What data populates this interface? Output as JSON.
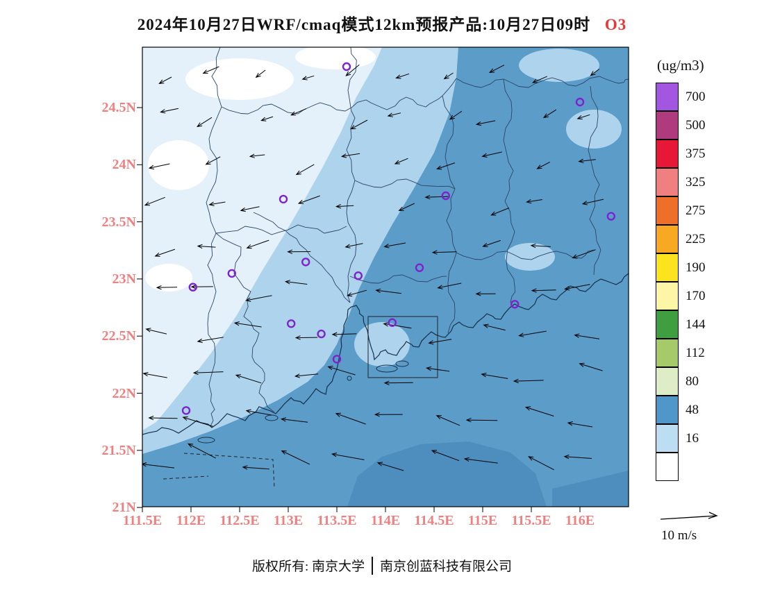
{
  "title": {
    "main": "2024年10月27日WRF/cmaq模式12km预报产品:10月27日09时",
    "species": "O3",
    "species_color": "#E93636"
  },
  "axes": {
    "lat_ticks": [
      "24.5N",
      "24N",
      "23.5N",
      "23N",
      "22.5N",
      "22N",
      "21.5N",
      "21N"
    ],
    "lon_ticks": [
      "111.5E",
      "112E",
      "112.5E",
      "113E",
      "113.5E",
      "114E",
      "114.5E",
      "115E",
      "115.5E",
      "116E"
    ],
    "tick_color": "#F08080"
  },
  "legend": {
    "unit": "(ug/m3)",
    "levels": [
      {
        "label": "700",
        "color": "#A356E0"
      },
      {
        "label": "500",
        "color": "#B03A7E"
      },
      {
        "label": "375",
        "color": "#E71837"
      },
      {
        "label": "325",
        "color": "#F08080"
      },
      {
        "label": "275",
        "color": "#EE7028"
      },
      {
        "label": "225",
        "color": "#F7A921"
      },
      {
        "label": "190",
        "color": "#FBE31D"
      },
      {
        "label": "170",
        "color": "#FCF6A6"
      },
      {
        "label": "144",
        "color": "#3F9E3F"
      },
      {
        "label": "112",
        "color": "#A6CA6A"
      },
      {
        "label": "80",
        "color": "#DFEDC6"
      },
      {
        "label": "48",
        "color": "#4F97C8"
      },
      {
        "label": "16",
        "color": "#BCDDF2"
      },
      {
        "label": "",
        "color": "#FFFFFF"
      }
    ]
  },
  "wind_scale": {
    "label": "10 m/s"
  },
  "footer": {
    "left": "版权所有: 南京大学",
    "right": "南京创蓝科技有限公司"
  },
  "station_marker_color": "#7E22CE",
  "wind_field": {
    "rows": 10,
    "cols": 10,
    "note": "easterly flow, arrows point westward; stronger over the southern sea"
  },
  "stations": [
    {
      "lon": 113.6,
      "lat": 24.86
    },
    {
      "lon": 116.0,
      "lat": 24.55
    },
    {
      "lon": 112.95,
      "lat": 23.7
    },
    {
      "lon": 114.62,
      "lat": 23.73
    },
    {
      "lon": 116.32,
      "lat": 23.55
    },
    {
      "lon": 113.18,
      "lat": 23.15
    },
    {
      "lon": 114.35,
      "lat": 23.1
    },
    {
      "lon": 112.42,
      "lat": 23.05
    },
    {
      "lon": 113.72,
      "lat": 23.03
    },
    {
      "lon": 112.02,
      "lat": 22.93
    },
    {
      "lon": 115.33,
      "lat": 22.78
    },
    {
      "lon": 113.03,
      "lat": 22.61
    },
    {
      "lon": 114.07,
      "lat": 22.62
    },
    {
      "lon": 113.34,
      "lat": 22.52
    },
    {
      "lon": 113.5,
      "lat": 22.3
    },
    {
      "lon": 111.95,
      "lat": 21.85
    }
  ],
  "chart_data": {
    "type": "heatmap",
    "title": "2024年10月27日WRF/cmaq模式12km预报产品:10月27日09时 O3",
    "variable": "O3",
    "unit": "ug/m3",
    "lon_range": [
      111.5,
      116.5
    ],
    "lat_range": [
      21,
      25
    ],
    "x_ticks": [
      "111.5E",
      "112E",
      "112.5E",
      "113E",
      "113.5E",
      "114E",
      "114.5E",
      "115E",
      "115.5E",
      "116E"
    ],
    "y_ticks": [
      "21N",
      "21.5N",
      "22N",
      "22.5N",
      "23N",
      "23.5N",
      "24N",
      "24.5N"
    ],
    "color_levels": [
      16,
      48,
      80,
      112,
      144,
      170,
      190,
      225,
      275,
      325,
      375,
      500,
      700
    ],
    "legend_position": "right",
    "wind_reference": "10 m/s",
    "field_summary": "O3 below 16 ug/m3 in the northwest (white/pale areas), 16-48 ug/m3 across a central diagonal band, 48-80 ug/m3 over the southeastern land and all coastal sea; uniform easterly winds (arrows point west), strongest over the southern sea"
  }
}
